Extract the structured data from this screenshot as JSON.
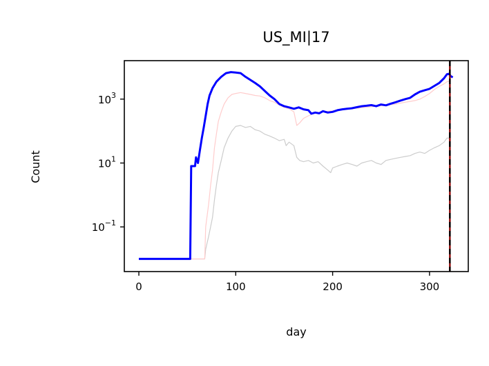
{
  "chart_data": {
    "type": "line",
    "title": "US_MI|17",
    "xlabel": "day",
    "ylabel": "Count",
    "yscale": "log",
    "xlim": [
      -15,
      340
    ],
    "ylim": [
      0.004,
      16000
    ],
    "x_ticks": [
      0,
      100,
      200,
      300
    ],
    "y_ticks": [
      {
        "value": 0.1,
        "base": "10",
        "exp": "−1"
      },
      {
        "value": 10,
        "base": "10",
        "exp": "1"
      },
      {
        "value": 1000,
        "base": "10",
        "exp": "3"
      }
    ],
    "vline": {
      "x": 321,
      "colors": [
        "#8b0000",
        "#000000"
      ],
      "style": "dashed"
    },
    "series": [
      {
        "color": "#cccccc",
        "width": 1.2,
        "points": [
          [
            0,
            0.01
          ],
          [
            55,
            0.01
          ],
          [
            66,
            0.01
          ],
          [
            68,
            0.01
          ],
          [
            69,
            0.02
          ],
          [
            72,
            0.05
          ],
          [
            74,
            0.1
          ],
          [
            76,
            0.2
          ],
          [
            78,
            0.7
          ],
          [
            80,
            2
          ],
          [
            82,
            5
          ],
          [
            85,
            12
          ],
          [
            88,
            30
          ],
          [
            92,
            60
          ],
          [
            96,
            100
          ],
          [
            100,
            140
          ],
          [
            105,
            150
          ],
          [
            110,
            130
          ],
          [
            115,
            140
          ],
          [
            120,
            110
          ],
          [
            125,
            100
          ],
          [
            130,
            80
          ],
          [
            135,
            70
          ],
          [
            140,
            60
          ],
          [
            145,
            50
          ],
          [
            150,
            55
          ],
          [
            152,
            35
          ],
          [
            155,
            45
          ],
          [
            160,
            35
          ],
          [
            163,
            15
          ],
          [
            166,
            12
          ],
          [
            170,
            11
          ],
          [
            175,
            12
          ],
          [
            180,
            10
          ],
          [
            185,
            11
          ],
          [
            190,
            8
          ],
          [
            195,
            6
          ],
          [
            198,
            5
          ],
          [
            200,
            7
          ],
          [
            205,
            8
          ],
          [
            210,
            9
          ],
          [
            215,
            10
          ],
          [
            220,
            9
          ],
          [
            225,
            8
          ],
          [
            230,
            10
          ],
          [
            235,
            11
          ],
          [
            240,
            12
          ],
          [
            245,
            10
          ],
          [
            250,
            9
          ],
          [
            255,
            12
          ],
          [
            260,
            13
          ],
          [
            265,
            14
          ],
          [
            270,
            15
          ],
          [
            275,
            16
          ],
          [
            280,
            17
          ],
          [
            285,
            20
          ],
          [
            290,
            22
          ],
          [
            295,
            20
          ],
          [
            300,
            25
          ],
          [
            305,
            30
          ],
          [
            310,
            35
          ],
          [
            315,
            45
          ],
          [
            318,
            60
          ],
          [
            322,
            60
          ]
        ]
      },
      {
        "color": "#ffcccc",
        "width": 1.2,
        "points": [
          [
            0,
            0.01
          ],
          [
            55,
            0.01
          ],
          [
            66,
            0.01
          ],
          [
            68,
            0.01
          ],
          [
            69,
            0.1
          ],
          [
            72,
            0.5
          ],
          [
            74,
            2
          ],
          [
            76,
            6
          ],
          [
            78,
            30
          ],
          [
            80,
            80
          ],
          [
            82,
            200
          ],
          [
            85,
            400
          ],
          [
            88,
            700
          ],
          [
            92,
            1100
          ],
          [
            96,
            1400
          ],
          [
            100,
            1500
          ],
          [
            105,
            1600
          ],
          [
            110,
            1500
          ],
          [
            115,
            1400
          ],
          [
            120,
            1300
          ],
          [
            125,
            1250
          ],
          [
            130,
            1100
          ],
          [
            135,
            900
          ],
          [
            140,
            800
          ],
          [
            145,
            650
          ],
          [
            150,
            550
          ],
          [
            155,
            500
          ],
          [
            160,
            400
          ],
          [
            163,
            150
          ],
          [
            166,
            180
          ],
          [
            170,
            250
          ],
          [
            175,
            300
          ],
          [
            180,
            350
          ],
          [
            185,
            380
          ],
          [
            190,
            400
          ],
          [
            195,
            420
          ],
          [
            200,
            430
          ],
          [
            205,
            450
          ],
          [
            210,
            470
          ],
          [
            215,
            480
          ],
          [
            220,
            500
          ],
          [
            225,
            520
          ],
          [
            230,
            540
          ],
          [
            235,
            560
          ],
          [
            240,
            580
          ],
          [
            245,
            600
          ],
          [
            250,
            620
          ],
          [
            255,
            650
          ],
          [
            260,
            680
          ],
          [
            265,
            700
          ],
          [
            270,
            750
          ],
          [
            275,
            800
          ],
          [
            280,
            850
          ],
          [
            285,
            900
          ],
          [
            290,
            1000
          ],
          [
            295,
            1200
          ],
          [
            300,
            1500
          ],
          [
            305,
            2000
          ],
          [
            310,
            2500
          ],
          [
            315,
            3000
          ],
          [
            318,
            3500
          ],
          [
            322,
            3700
          ]
        ]
      },
      {
        "color": "#0000ff",
        "width": 3,
        "points": [
          [
            0,
            0.01
          ],
          [
            52,
            0.01
          ],
          [
            53,
            0.01
          ],
          [
            54,
            8
          ],
          [
            58,
            8
          ],
          [
            59,
            15
          ],
          [
            61,
            10
          ],
          [
            63,
            25
          ],
          [
            65,
            60
          ],
          [
            67,
            130
          ],
          [
            69,
            300
          ],
          [
            71,
            700
          ],
          [
            73,
            1300
          ],
          [
            76,
            2200
          ],
          [
            80,
            3500
          ],
          [
            85,
            5000
          ],
          [
            90,
            6500
          ],
          [
            95,
            7000
          ],
          [
            100,
            6800
          ],
          [
            105,
            6500
          ],
          [
            110,
            5000
          ],
          [
            115,
            4000
          ],
          [
            120,
            3200
          ],
          [
            125,
            2500
          ],
          [
            130,
            1800
          ],
          [
            135,
            1300
          ],
          [
            140,
            1000
          ],
          [
            145,
            700
          ],
          [
            150,
            600
          ],
          [
            155,
            550
          ],
          [
            160,
            500
          ],
          [
            165,
            550
          ],
          [
            170,
            480
          ],
          [
            175,
            450
          ],
          [
            178,
            350
          ],
          [
            182,
            380
          ],
          [
            186,
            360
          ],
          [
            190,
            420
          ],
          [
            195,
            380
          ],
          [
            200,
            400
          ],
          [
            205,
            450
          ],
          [
            210,
            480
          ],
          [
            215,
            500
          ],
          [
            220,
            520
          ],
          [
            225,
            560
          ],
          [
            230,
            600
          ],
          [
            235,
            620
          ],
          [
            240,
            650
          ],
          [
            245,
            600
          ],
          [
            250,
            680
          ],
          [
            255,
            640
          ],
          [
            260,
            720
          ],
          [
            265,
            800
          ],
          [
            270,
            900
          ],
          [
            275,
            1000
          ],
          [
            280,
            1100
          ],
          [
            285,
            1400
          ],
          [
            290,
            1700
          ],
          [
            295,
            1900
          ],
          [
            300,
            2100
          ],
          [
            305,
            2600
          ],
          [
            310,
            3200
          ],
          [
            315,
            4500
          ],
          [
            318,
            6000
          ],
          [
            320,
            6200
          ],
          [
            322,
            5200
          ],
          [
            324,
            4800
          ]
        ]
      }
    ]
  }
}
